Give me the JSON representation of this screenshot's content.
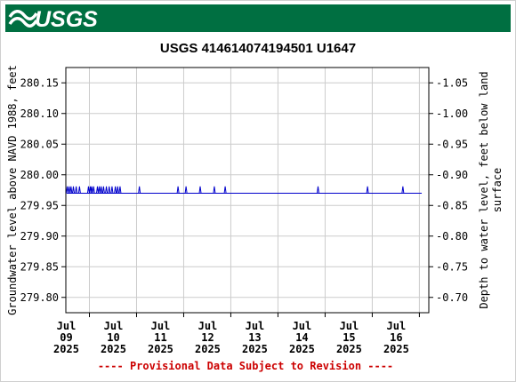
{
  "logo": {
    "text": "USGS",
    "color": "#006f41"
  },
  "chart_data": {
    "type": "line",
    "title": "USGS 414614074194501 U1647",
    "ylabel_left": "Groundwater level above NAVD 1988, feet",
    "ylabel_right": "Depth to water level, feet below land surface",
    "ylim_left": [
      279.775,
      280.175
    ],
    "yticks_left": [
      "280.15",
      "280.10",
      "280.05",
      "280.00",
      "279.95",
      "279.90",
      "279.85",
      "279.80"
    ],
    "yticks_right": [
      "-1.05",
      "-1.00",
      "-0.95",
      "-0.90",
      "-0.85",
      "-0.80",
      "-0.75",
      "-0.70"
    ],
    "xlim": [
      8.5,
      16.2
    ],
    "xticks": [
      {
        "x": 9,
        "month": "Jul",
        "day": "09",
        "year": "2025"
      },
      {
        "x": 10,
        "month": "Jul",
        "day": "10",
        "year": "2025"
      },
      {
        "x": 11,
        "month": "Jul",
        "day": "11",
        "year": "2025"
      },
      {
        "x": 12,
        "month": "Jul",
        "day": "12",
        "year": "2025"
      },
      {
        "x": 13,
        "month": "Jul",
        "day": "13",
        "year": "2025"
      },
      {
        "x": 14,
        "month": "Jul",
        "day": "14",
        "year": "2025"
      },
      {
        "x": 15,
        "month": "Jul",
        "day": "15",
        "year": "2025"
      },
      {
        "x": 16,
        "month": "Jul",
        "day": "16",
        "year": "2025"
      }
    ],
    "grid": true,
    "series": [
      {
        "color": "#0000cc",
        "baseline": 279.97,
        "spike_level": 279.981,
        "spike_days": [
          8.53,
          8.57,
          8.61,
          8.66,
          8.72,
          8.79,
          8.98,
          9.02,
          9.05,
          9.09,
          9.17,
          9.21,
          9.25,
          9.3,
          9.36,
          9.42,
          9.48,
          9.55,
          9.6,
          9.65,
          10.06,
          10.88,
          11.05,
          11.35,
          11.65,
          11.88,
          13.85,
          14.9,
          15.65
        ],
        "end_day": 16.05
      }
    ],
    "footnote": "---- Provisional Data Subject to Revision ----",
    "footnote_color": "#cc0000"
  }
}
